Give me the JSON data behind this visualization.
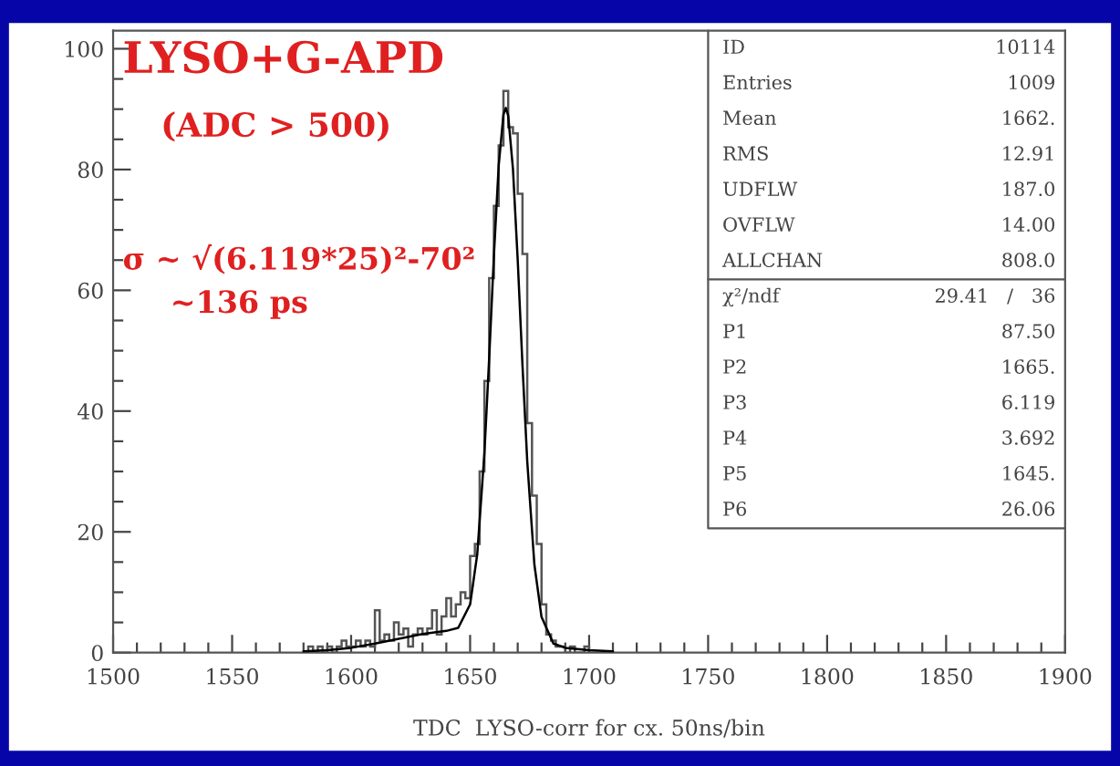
{
  "chart_data": {
    "type": "histogram",
    "title": "LYSO+G-APD",
    "subtitle": "(ADC > 500)",
    "xlabel": "TDC  LYSO-corr for cx. 50ns/bin",
    "bins": [
      1580,
      1582,
      1584,
      1586,
      1588,
      1590,
      1592,
      1594,
      1596,
      1598,
      1600,
      1602,
      1604,
      1606,
      1608,
      1610,
      1612,
      1614,
      1616,
      1618,
      1620,
      1622,
      1624,
      1626,
      1628,
      1630,
      1632,
      1634,
      1636,
      1638,
      1640,
      1642,
      1644,
      1646,
      1648,
      1650,
      1652,
      1654,
      1656,
      1658,
      1660,
      1662,
      1664,
      1666,
      1668,
      1670,
      1672,
      1674,
      1676,
      1678,
      1680,
      1682,
      1684,
      1686,
      1688,
      1690,
      1692,
      1694,
      1696,
      1698,
      1700
    ],
    "series": [
      {
        "color": "#555555",
        "values": [
          0,
          1,
          0,
          1,
          0,
          1,
          0,
          1,
          2,
          1,
          1,
          2,
          1,
          2,
          1,
          7,
          2,
          3,
          2,
          5,
          3,
          4,
          1,
          3,
          4,
          3,
          4,
          7,
          3,
          6,
          9,
          6,
          8,
          10,
          9,
          16,
          18,
          30,
          45,
          62,
          74,
          84,
          93,
          87,
          86,
          76,
          66,
          38,
          26,
          18,
          8,
          3,
          2,
          1,
          1,
          0,
          1,
          0,
          0,
          1
        ]
      },
      {
        "type": "line",
        "color": "#000000",
        "x": [
          1580,
          1590,
          1600,
          1610,
          1620,
          1630,
          1640,
          1645,
          1650,
          1653,
          1656,
          1658,
          1660,
          1662,
          1664,
          1665,
          1666,
          1668,
          1670,
          1672,
          1674,
          1677,
          1680,
          1685,
          1690,
          1700,
          1710
        ],
        "values": [
          0.2,
          0.4,
          0.8,
          1.5,
          2.3,
          3.1,
          3.6,
          4.1,
          8.0,
          16.3,
          33.0,
          48.7,
          65.8,
          80.6,
          89.1,
          90.2,
          88.9,
          80.1,
          65.0,
          47.6,
          31.7,
          14.6,
          5.9,
          1.5,
          0.8,
          0.4,
          0.2
        ]
      }
    ],
    "xlim": [
      1500,
      1900
    ],
    "xticks": [
      1500,
      1550,
      1600,
      1650,
      1700,
      1750,
      1800,
      1850,
      1900
    ],
    "ylim": [
      0,
      103
    ],
    "yticks": [
      0,
      20,
      40,
      60,
      80,
      100
    ],
    "grid": false,
    "annotations": [
      "σ ~ √(6.119*25)²-70²",
      "~136 ps",
      "ID",
      "10114",
      "Entries",
      "1009",
      "Mean",
      "1662.",
      "RMS",
      "12.91",
      "UDFLW",
      "187.0",
      "OVFLW",
      "14.00",
      "ALLCHAN",
      "808.0",
      "χ²/ndf",
      "29.41   /   36",
      "P1",
      "87.50",
      "P2",
      "1665.",
      "P3",
      "6.119",
      "P4",
      "3.692",
      "P5",
      "1645.",
      "P6",
      "26.06"
    ]
  }
}
